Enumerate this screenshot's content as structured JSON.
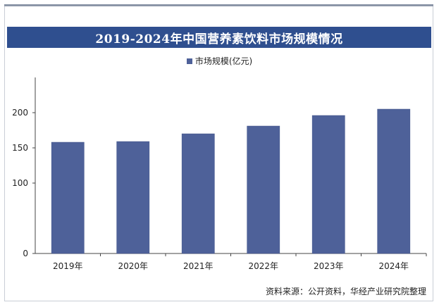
{
  "title": "2019-2024年中国营养素饮料市场规模情况",
  "legend": {
    "label": "市场规模(亿元)",
    "color": "#4e6199"
  },
  "source": "资料来源：公开资料，华经产业研究院整理",
  "chart_data": {
    "type": "bar",
    "categories": [
      "2019年",
      "2020年",
      "2021年",
      "2022年",
      "2023年",
      "2024年"
    ],
    "series": [
      {
        "name": "市场规模(亿元)",
        "values": [
          158,
          159,
          170,
          181,
          196,
          205
        ]
      }
    ],
    "ylim": [
      0,
      250
    ],
    "yticks": [
      0,
      100,
      150,
      200
    ],
    "grid": false,
    "legend_position": "top-center",
    "bar_color": "#4e6199"
  }
}
